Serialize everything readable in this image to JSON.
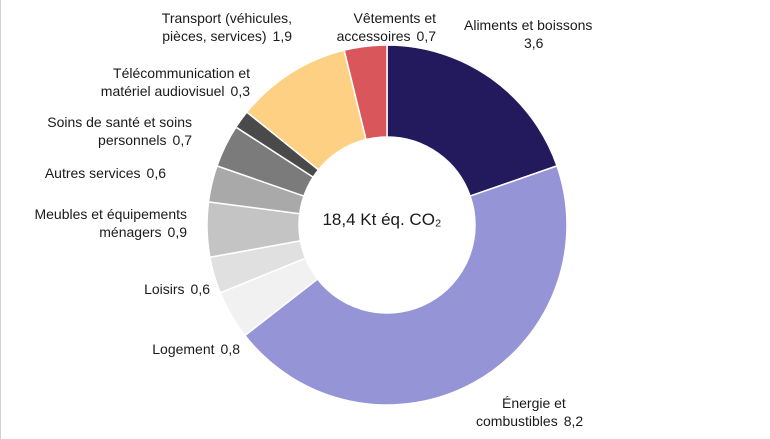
{
  "chart_data": {
    "type": "pie",
    "center_label": "18,4 Kt éq. CO₂",
    "slices": [
      {
        "label_lines": [
          "Aliments et boissons"
        ],
        "value": 3.6,
        "value_text": "3,6",
        "color": "#221a5c"
      },
      {
        "label_lines": [
          "Énergie et",
          "combustibles"
        ],
        "value": 8.2,
        "value_text": "8,2",
        "color": "#9594d6"
      },
      {
        "label_lines": [
          "Logement"
        ],
        "value": 0.8,
        "value_text": "0,8",
        "color": "#f1f1f1"
      },
      {
        "label_lines": [
          "Loisirs"
        ],
        "value": 0.6,
        "value_text": "0,6",
        "color": "#e0e0e0"
      },
      {
        "label_lines": [
          "Meubles et équipements",
          "ménagers"
        ],
        "value": 0.9,
        "value_text": "0,9",
        "color": "#c4c4c4"
      },
      {
        "label_lines": [
          "Autres services"
        ],
        "value": 0.6,
        "value_text": "0,6",
        "color": "#a9a9a9"
      },
      {
        "label_lines": [
          "Soins de santé et soins",
          "personnels"
        ],
        "value": 0.7,
        "value_text": "0,7",
        "color": "#7b7b7b"
      },
      {
        "label_lines": [
          "Télécommunication et",
          "matériel audiovisuel"
        ],
        "value": 0.3,
        "value_text": "0,3",
        "color": "#4a4a4a"
      },
      {
        "label_lines": [
          "Transport (véhicules,",
          "pièces, services)"
        ],
        "value": 1.9,
        "value_text": "1,9",
        "color": "#fdd083"
      },
      {
        "label_lines": [
          "Vêtements et",
          "accessoires"
        ],
        "value": 0.7,
        "value_text": "0,7",
        "color": "#d9565b"
      }
    ]
  }
}
